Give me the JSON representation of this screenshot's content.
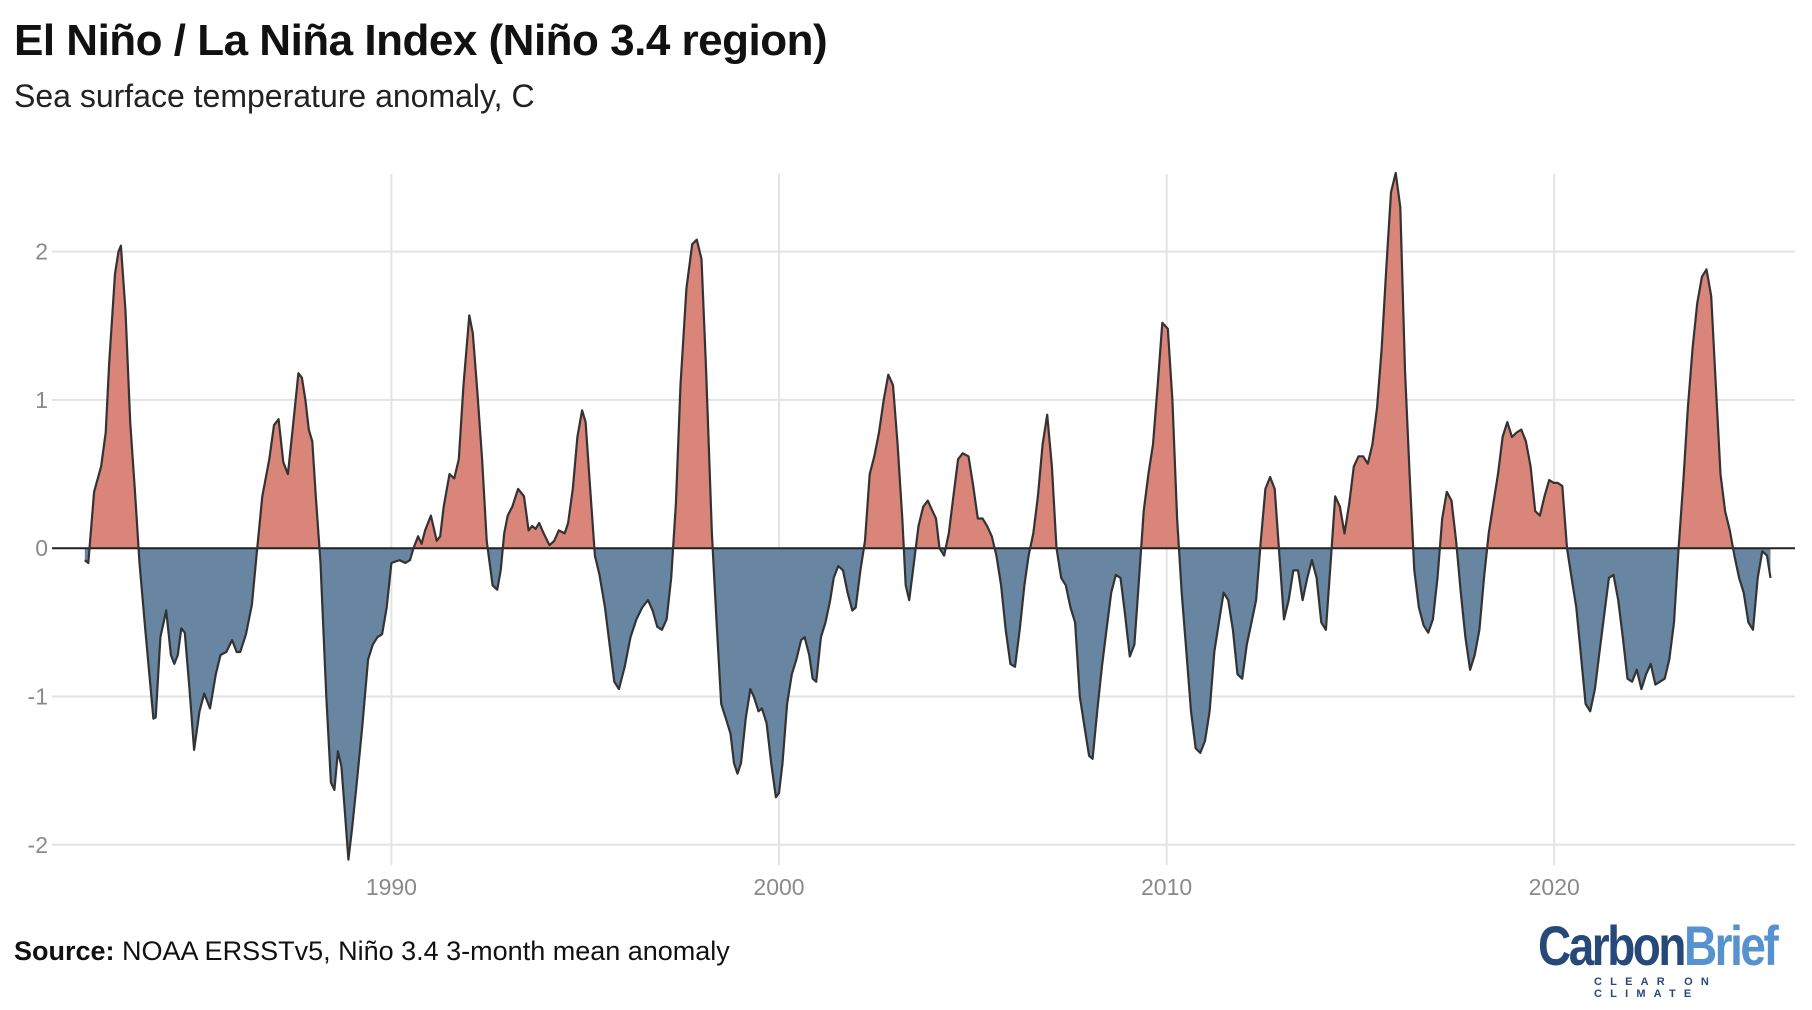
{
  "title": "El Niño / La Niña Index (Niño 3.4 region)",
  "subtitle": "Sea surface temperature anomaly, C",
  "source_label": "Source:",
  "source_text": " NOAA ERSSTv5, Niño 3.4 3-month mean anomaly",
  "logo": {
    "name": "CarbonBrief",
    "part1": "Carbon",
    "part2": "Brief",
    "tagline": "CLEAR ON CLIMATE"
  },
  "colors": {
    "positive": "#d9857a",
    "negative": "#6886a1",
    "line": "#333333",
    "grid": "#e3e3e3"
  },
  "chart_data": {
    "type": "area",
    "title": "El Niño / La Niña Index (Niño 3.4 region)",
    "ylabel": "Sea surface temperature anomaly, C",
    "xlim": [
      1982,
      2025.8
    ],
    "ylim": [
      -2.1,
      2.55
    ],
    "grid": true,
    "x_ticks": [
      1990,
      2000,
      2010,
      2020
    ],
    "x_tick_labels": [
      "1990",
      "2000",
      "2010",
      "2020"
    ],
    "y_ticks": [
      -2,
      -1,
      0,
      1,
      2
    ],
    "y_tick_labels": [
      "-2",
      "-1",
      "0",
      "1",
      "2"
    ],
    "points": [
      [
        1982.09,
        -0.08
      ],
      [
        1982.18,
        -0.1
      ],
      [
        1982.33,
        0.38
      ],
      [
        1982.51,
        0.55
      ],
      [
        1982.63,
        0.78
      ],
      [
        1982.72,
        1.25
      ],
      [
        1982.87,
        1.85
      ],
      [
        1982.96,
        2.0
      ],
      [
        1983.02,
        2.04
      ],
      [
        1983.14,
        1.6
      ],
      [
        1983.26,
        0.85
      ],
      [
        1983.38,
        0.4
      ],
      [
        1983.5,
        -0.1
      ],
      [
        1983.65,
        -0.55
      ],
      [
        1983.86,
        -1.15
      ],
      [
        1983.92,
        -1.14
      ],
      [
        1984.04,
        -0.6
      ],
      [
        1984.19,
        -0.42
      ],
      [
        1984.31,
        -0.72
      ],
      [
        1984.4,
        -0.78
      ],
      [
        1984.49,
        -0.72
      ],
      [
        1984.58,
        -0.54
      ],
      [
        1984.67,
        -0.57
      ],
      [
        1984.79,
        -0.95
      ],
      [
        1984.91,
        -1.36
      ],
      [
        1985.05,
        -1.1
      ],
      [
        1985.17,
        -0.98
      ],
      [
        1985.32,
        -1.08
      ],
      [
        1985.47,
        -0.85
      ],
      [
        1985.59,
        -0.72
      ],
      [
        1985.74,
        -0.7
      ],
      [
        1985.89,
        -0.62
      ],
      [
        1986.01,
        -0.7
      ],
      [
        1986.1,
        -0.7
      ],
      [
        1986.25,
        -0.58
      ],
      [
        1986.4,
        -0.38
      ],
      [
        1986.52,
        -0.05
      ],
      [
        1986.67,
        0.35
      ],
      [
        1986.85,
        0.6
      ],
      [
        1986.97,
        0.83
      ],
      [
        1987.09,
        0.87
      ],
      [
        1987.21,
        0.58
      ],
      [
        1987.33,
        0.5
      ],
      [
        1987.45,
        0.8
      ],
      [
        1987.6,
        1.18
      ],
      [
        1987.69,
        1.15
      ],
      [
        1987.78,
        1.0
      ],
      [
        1987.87,
        0.8
      ],
      [
        1987.96,
        0.72
      ],
      [
        1988.05,
        0.35
      ],
      [
        1988.17,
        -0.1
      ],
      [
        1988.32,
        -1.0
      ],
      [
        1988.44,
        -1.58
      ],
      [
        1988.53,
        -1.63
      ],
      [
        1988.62,
        -1.37
      ],
      [
        1988.71,
        -1.47
      ],
      [
        1988.8,
        -1.78
      ],
      [
        1988.89,
        -2.1
      ],
      [
        1988.98,
        -1.9
      ],
      [
        1989.1,
        -1.6
      ],
      [
        1989.25,
        -1.2
      ],
      [
        1989.4,
        -0.75
      ],
      [
        1989.52,
        -0.65
      ],
      [
        1989.64,
        -0.6
      ],
      [
        1989.76,
        -0.58
      ],
      [
        1989.88,
        -0.4
      ],
      [
        1990.0,
        -0.1
      ],
      [
        1990.21,
        -0.08
      ],
      [
        1990.36,
        -0.1
      ],
      [
        1990.48,
        -0.08
      ],
      [
        1990.57,
        0.0
      ],
      [
        1990.69,
        0.08
      ],
      [
        1990.78,
        0.03
      ],
      [
        1990.87,
        0.12
      ],
      [
        1991.02,
        0.22
      ],
      [
        1991.17,
        0.05
      ],
      [
        1991.26,
        0.08
      ],
      [
        1991.35,
        0.28
      ],
      [
        1991.5,
        0.5
      ],
      [
        1991.62,
        0.47
      ],
      [
        1991.74,
        0.6
      ],
      [
        1991.86,
        1.1
      ],
      [
        1992.01,
        1.57
      ],
      [
        1992.1,
        1.45
      ],
      [
        1992.22,
        1.05
      ],
      [
        1992.34,
        0.6
      ],
      [
        1992.46,
        0.05
      ],
      [
        1992.61,
        -0.25
      ],
      [
        1992.73,
        -0.28
      ],
      [
        1992.82,
        -0.15
      ],
      [
        1992.91,
        0.1
      ],
      [
        1993.0,
        0.22
      ],
      [
        1993.12,
        0.28
      ],
      [
        1993.27,
        0.4
      ],
      [
        1993.42,
        0.35
      ],
      [
        1993.54,
        0.12
      ],
      [
        1993.63,
        0.15
      ],
      [
        1993.72,
        0.13
      ],
      [
        1993.81,
        0.17
      ],
      [
        1993.93,
        0.1
      ],
      [
        1994.08,
        0.02
      ],
      [
        1994.2,
        0.05
      ],
      [
        1994.32,
        0.12
      ],
      [
        1994.47,
        0.1
      ],
      [
        1994.56,
        0.17
      ],
      [
        1994.68,
        0.4
      ],
      [
        1994.8,
        0.75
      ],
      [
        1994.92,
        0.93
      ],
      [
        1995.01,
        0.85
      ],
      [
        1995.13,
        0.4
      ],
      [
        1995.25,
        -0.05
      ],
      [
        1995.37,
        -0.18
      ],
      [
        1995.51,
        -0.4
      ],
      [
        1995.63,
        -0.65
      ],
      [
        1995.75,
        -0.9
      ],
      [
        1995.87,
        -0.95
      ],
      [
        1996.02,
        -0.8
      ],
      [
        1996.17,
        -0.6
      ],
      [
        1996.32,
        -0.48
      ],
      [
        1996.47,
        -0.4
      ],
      [
        1996.62,
        -0.35
      ],
      [
        1996.74,
        -0.42
      ],
      [
        1996.86,
        -0.53
      ],
      [
        1996.98,
        -0.55
      ],
      [
        1997.1,
        -0.48
      ],
      [
        1997.22,
        -0.2
      ],
      [
        1997.34,
        0.3
      ],
      [
        1997.46,
        1.1
      ],
      [
        1997.61,
        1.75
      ],
      [
        1997.76,
        2.05
      ],
      [
        1997.88,
        2.08
      ],
      [
        1998.0,
        1.95
      ],
      [
        1998.12,
        1.2
      ],
      [
        1998.27,
        0.1
      ],
      [
        1998.39,
        -0.5
      ],
      [
        1998.51,
        -1.05
      ],
      [
        1998.63,
        -1.15
      ],
      [
        1998.75,
        -1.25
      ],
      [
        1998.84,
        -1.45
      ],
      [
        1998.93,
        -1.52
      ],
      [
        1999.02,
        -1.45
      ],
      [
        1999.14,
        -1.15
      ],
      [
        1999.26,
        -0.95
      ],
      [
        1999.35,
        -1.0
      ],
      [
        1999.47,
        -1.1
      ],
      [
        1999.56,
        -1.08
      ],
      [
        1999.68,
        -1.18
      ],
      [
        1999.8,
        -1.45
      ],
      [
        1999.92,
        -1.68
      ],
      [
        2000.0,
        -1.65
      ],
      [
        2000.09,
        -1.45
      ],
      [
        2000.21,
        -1.05
      ],
      [
        2000.33,
        -0.85
      ],
      [
        2000.45,
        -0.75
      ],
      [
        2000.57,
        -0.62
      ],
      [
        2000.66,
        -0.6
      ],
      [
        2000.78,
        -0.72
      ],
      [
        2000.87,
        -0.88
      ],
      [
        2000.96,
        -0.9
      ],
      [
        2001.08,
        -0.6
      ],
      [
        2001.2,
        -0.5
      ],
      [
        2001.32,
        -0.35
      ],
      [
        2001.41,
        -0.2
      ],
      [
        2001.53,
        -0.12
      ],
      [
        2001.65,
        -0.15
      ],
      [
        2001.77,
        -0.3
      ],
      [
        2001.89,
        -0.42
      ],
      [
        2001.98,
        -0.4
      ],
      [
        2002.1,
        -0.15
      ],
      [
        2002.22,
        0.05
      ],
      [
        2002.34,
        0.5
      ],
      [
        2002.46,
        0.62
      ],
      [
        2002.58,
        0.78
      ],
      [
        2002.7,
        1.0
      ],
      [
        2002.82,
        1.17
      ],
      [
        2002.94,
        1.1
      ],
      [
        2003.06,
        0.7
      ],
      [
        2003.18,
        0.2
      ],
      [
        2003.27,
        -0.25
      ],
      [
        2003.36,
        -0.35
      ],
      [
        2003.48,
        -0.1
      ],
      [
        2003.6,
        0.15
      ],
      [
        2003.72,
        0.28
      ],
      [
        2003.84,
        0.32
      ],
      [
        2003.96,
        0.25
      ],
      [
        2004.05,
        0.2
      ],
      [
        2004.14,
        0.0
      ],
      [
        2004.26,
        -0.05
      ],
      [
        2004.38,
        0.1
      ],
      [
        2004.5,
        0.35
      ],
      [
        2004.62,
        0.6
      ],
      [
        2004.74,
        0.64
      ],
      [
        2004.89,
        0.62
      ],
      [
        2005.01,
        0.42
      ],
      [
        2005.13,
        0.2
      ],
      [
        2005.25,
        0.2
      ],
      [
        2005.37,
        0.15
      ],
      [
        2005.49,
        0.08
      ],
      [
        2005.61,
        -0.05
      ],
      [
        2005.73,
        -0.25
      ],
      [
        2005.85,
        -0.55
      ],
      [
        2005.97,
        -0.78
      ],
      [
        2006.09,
        -0.8
      ],
      [
        2006.21,
        -0.55
      ],
      [
        2006.33,
        -0.25
      ],
      [
        2006.44,
        -0.05
      ],
      [
        2006.56,
        0.1
      ],
      [
        2006.68,
        0.35
      ],
      [
        2006.8,
        0.7
      ],
      [
        2006.92,
        0.9
      ],
      [
        2007.04,
        0.55
      ],
      [
        2007.16,
        0.0
      ],
      [
        2007.28,
        -0.2
      ],
      [
        2007.4,
        -0.25
      ],
      [
        2007.52,
        -0.4
      ],
      [
        2007.64,
        -0.5
      ],
      [
        2007.76,
        -1.0
      ],
      [
        2007.88,
        -1.2
      ],
      [
        2008.0,
        -1.4
      ],
      [
        2008.09,
        -1.42
      ],
      [
        2008.21,
        -1.1
      ],
      [
        2008.33,
        -0.8
      ],
      [
        2008.45,
        -0.55
      ],
      [
        2008.57,
        -0.3
      ],
      [
        2008.69,
        -0.18
      ],
      [
        2008.81,
        -0.2
      ],
      [
        2008.93,
        -0.45
      ],
      [
        2009.05,
        -0.73
      ],
      [
        2009.17,
        -0.65
      ],
      [
        2009.29,
        -0.2
      ],
      [
        2009.41,
        0.25
      ],
      [
        2009.53,
        0.5
      ],
      [
        2009.65,
        0.7
      ],
      [
        2009.77,
        1.1
      ],
      [
        2009.89,
        1.52
      ],
      [
        2010.03,
        1.48
      ],
      [
        2010.15,
        1.0
      ],
      [
        2010.27,
        0.2
      ],
      [
        2010.39,
        -0.3
      ],
      [
        2010.51,
        -0.7
      ],
      [
        2010.63,
        -1.1
      ],
      [
        2010.75,
        -1.35
      ],
      [
        2010.87,
        -1.38
      ],
      [
        2010.99,
        -1.3
      ],
      [
        2011.11,
        -1.1
      ],
      [
        2011.23,
        -0.7
      ],
      [
        2011.35,
        -0.5
      ],
      [
        2011.47,
        -0.3
      ],
      [
        2011.59,
        -0.35
      ],
      [
        2011.71,
        -0.55
      ],
      [
        2011.83,
        -0.85
      ],
      [
        2011.95,
        -0.88
      ],
      [
        2012.07,
        -0.65
      ],
      [
        2012.19,
        -0.5
      ],
      [
        2012.31,
        -0.35
      ],
      [
        2012.43,
        0.05
      ],
      [
        2012.55,
        0.4
      ],
      [
        2012.67,
        0.48
      ],
      [
        2012.79,
        0.4
      ],
      [
        2012.91,
        -0.05
      ],
      [
        2013.03,
        -0.48
      ],
      [
        2013.15,
        -0.35
      ],
      [
        2013.27,
        -0.15
      ],
      [
        2013.39,
        -0.15
      ],
      [
        2013.51,
        -0.35
      ],
      [
        2013.63,
        -0.2
      ],
      [
        2013.75,
        -0.08
      ],
      [
        2013.87,
        -0.2
      ],
      [
        2013.99,
        -0.5
      ],
      [
        2014.11,
        -0.55
      ],
      [
        2014.23,
        -0.1
      ],
      [
        2014.35,
        0.35
      ],
      [
        2014.47,
        0.28
      ],
      [
        2014.59,
        0.1
      ],
      [
        2014.71,
        0.3
      ],
      [
        2014.83,
        0.55
      ],
      [
        2014.95,
        0.62
      ],
      [
        2015.07,
        0.62
      ],
      [
        2015.19,
        0.57
      ],
      [
        2015.31,
        0.7
      ],
      [
        2015.43,
        0.95
      ],
      [
        2015.55,
        1.35
      ],
      [
        2015.67,
        1.9
      ],
      [
        2015.79,
        2.4
      ],
      [
        2015.91,
        2.53
      ],
      [
        2016.03,
        2.3
      ],
      [
        2016.15,
        1.2
      ],
      [
        2016.27,
        0.5
      ],
      [
        2016.39,
        -0.15
      ],
      [
        2016.51,
        -0.4
      ],
      [
        2016.63,
        -0.52
      ],
      [
        2016.75,
        -0.57
      ],
      [
        2016.87,
        -0.48
      ],
      [
        2016.99,
        -0.2
      ],
      [
        2017.11,
        0.2
      ],
      [
        2017.23,
        0.38
      ],
      [
        2017.35,
        0.32
      ],
      [
        2017.47,
        0.05
      ],
      [
        2017.59,
        -0.3
      ],
      [
        2017.71,
        -0.6
      ],
      [
        2017.83,
        -0.82
      ],
      [
        2017.95,
        -0.72
      ],
      [
        2018.07,
        -0.55
      ],
      [
        2018.19,
        -0.2
      ],
      [
        2018.31,
        0.1
      ],
      [
        2018.43,
        0.3
      ],
      [
        2018.55,
        0.5
      ],
      [
        2018.67,
        0.75
      ],
      [
        2018.79,
        0.85
      ],
      [
        2018.91,
        0.75
      ],
      [
        2019.03,
        0.78
      ],
      [
        2019.15,
        0.8
      ],
      [
        2019.27,
        0.72
      ],
      [
        2019.39,
        0.55
      ],
      [
        2019.51,
        0.25
      ],
      [
        2019.63,
        0.22
      ],
      [
        2019.75,
        0.35
      ],
      [
        2019.87,
        0.46
      ],
      [
        2019.99,
        0.44
      ],
      [
        2020.09,
        0.44
      ],
      [
        2020.21,
        0.42
      ],
      [
        2020.33,
        0.0
      ],
      [
        2020.45,
        -0.2
      ],
      [
        2020.57,
        -0.4
      ],
      [
        2020.69,
        -0.72
      ],
      [
        2020.81,
        -1.05
      ],
      [
        2020.93,
        -1.1
      ],
      [
        2021.05,
        -0.95
      ],
      [
        2021.17,
        -0.7
      ],
      [
        2021.29,
        -0.45
      ],
      [
        2021.41,
        -0.2
      ],
      [
        2021.53,
        -0.18
      ],
      [
        2021.65,
        -0.35
      ],
      [
        2021.77,
        -0.6
      ],
      [
        2021.89,
        -0.88
      ],
      [
        2022.01,
        -0.9
      ],
      [
        2022.13,
        -0.82
      ],
      [
        2022.25,
        -0.95
      ],
      [
        2022.37,
        -0.85
      ],
      [
        2022.49,
        -0.78
      ],
      [
        2022.61,
        -0.92
      ],
      [
        2022.73,
        -0.9
      ],
      [
        2022.85,
        -0.88
      ],
      [
        2022.97,
        -0.75
      ],
      [
        2023.09,
        -0.5
      ],
      [
        2023.21,
        0.0
      ],
      [
        2023.33,
        0.45
      ],
      [
        2023.45,
        0.95
      ],
      [
        2023.57,
        1.35
      ],
      [
        2023.69,
        1.65
      ],
      [
        2023.81,
        1.83
      ],
      [
        2023.93,
        1.88
      ],
      [
        2024.05,
        1.7
      ],
      [
        2024.17,
        1.1
      ],
      [
        2024.29,
        0.5
      ],
      [
        2024.41,
        0.25
      ],
      [
        2024.53,
        0.12
      ],
      [
        2024.65,
        -0.05
      ],
      [
        2024.77,
        -0.2
      ],
      [
        2024.89,
        -0.3
      ],
      [
        2025.01,
        -0.5
      ],
      [
        2025.13,
        -0.55
      ],
      [
        2025.25,
        -0.2
      ],
      [
        2025.37,
        -0.02
      ],
      [
        2025.49,
        -0.05
      ],
      [
        2025.58,
        -0.2
      ]
    ]
  }
}
